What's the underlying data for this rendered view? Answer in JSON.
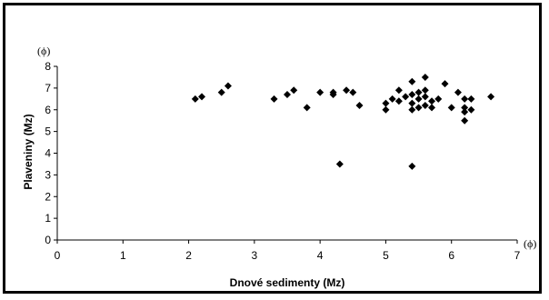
{
  "chart_data": {
    "type": "scatter",
    "xlabel": "Dnové sedimenty (Mz)",
    "ylabel": "Plaveniny (Mz)",
    "x_unit": "(ϕ)",
    "y_unit": "(ϕ)",
    "xlim": [
      0,
      7
    ],
    "ylim": [
      0,
      8
    ],
    "x_ticks": [
      "0",
      "1",
      "2",
      "3",
      "4",
      "5",
      "6",
      "7"
    ],
    "y_ticks": [
      "0",
      "1",
      "2",
      "3",
      "4",
      "5",
      "6",
      "7",
      "8"
    ],
    "grid": false,
    "marker": "diamond",
    "marker_color": "#000000",
    "points": [
      {
        "x": 2.1,
        "y": 6.5
      },
      {
        "x": 2.2,
        "y": 6.6
      },
      {
        "x": 2.5,
        "y": 6.8
      },
      {
        "x": 2.6,
        "y": 7.1
      },
      {
        "x": 3.3,
        "y": 6.5
      },
      {
        "x": 3.5,
        "y": 6.7
      },
      {
        "x": 3.6,
        "y": 6.9
      },
      {
        "x": 3.8,
        "y": 6.1
      },
      {
        "x": 4.0,
        "y": 6.8
      },
      {
        "x": 4.2,
        "y": 6.8
      },
      {
        "x": 4.2,
        "y": 6.7
      },
      {
        "x": 4.3,
        "y": 3.5
      },
      {
        "x": 4.4,
        "y": 6.9
      },
      {
        "x": 4.5,
        "y": 6.8
      },
      {
        "x": 4.6,
        "y": 6.2
      },
      {
        "x": 5.0,
        "y": 6.3
      },
      {
        "x": 5.0,
        "y": 6.0
      },
      {
        "x": 5.1,
        "y": 6.5
      },
      {
        "x": 5.2,
        "y": 6.4
      },
      {
        "x": 5.2,
        "y": 6.9
      },
      {
        "x": 5.3,
        "y": 6.6
      },
      {
        "x": 5.4,
        "y": 7.3
      },
      {
        "x": 5.4,
        "y": 6.7
      },
      {
        "x": 5.4,
        "y": 6.3
      },
      {
        "x": 5.4,
        "y": 6.0
      },
      {
        "x": 5.4,
        "y": 3.4
      },
      {
        "x": 5.5,
        "y": 6.8
      },
      {
        "x": 5.5,
        "y": 6.5
      },
      {
        "x": 5.5,
        "y": 6.1
      },
      {
        "x": 5.6,
        "y": 7.5
      },
      {
        "x": 5.6,
        "y": 6.9
      },
      {
        "x": 5.6,
        "y": 6.6
      },
      {
        "x": 5.6,
        "y": 6.2
      },
      {
        "x": 5.7,
        "y": 6.4
      },
      {
        "x": 5.7,
        "y": 6.1
      },
      {
        "x": 5.8,
        "y": 6.5
      },
      {
        "x": 5.9,
        "y": 7.2
      },
      {
        "x": 6.0,
        "y": 6.1
      },
      {
        "x": 6.1,
        "y": 6.8
      },
      {
        "x": 6.2,
        "y": 6.5
      },
      {
        "x": 6.2,
        "y": 6.1
      },
      {
        "x": 6.2,
        "y": 5.9
      },
      {
        "x": 6.2,
        "y": 5.5
      },
      {
        "x": 6.3,
        "y": 6.5
      },
      {
        "x": 6.3,
        "y": 6.0
      },
      {
        "x": 6.6,
        "y": 6.6
      }
    ]
  }
}
